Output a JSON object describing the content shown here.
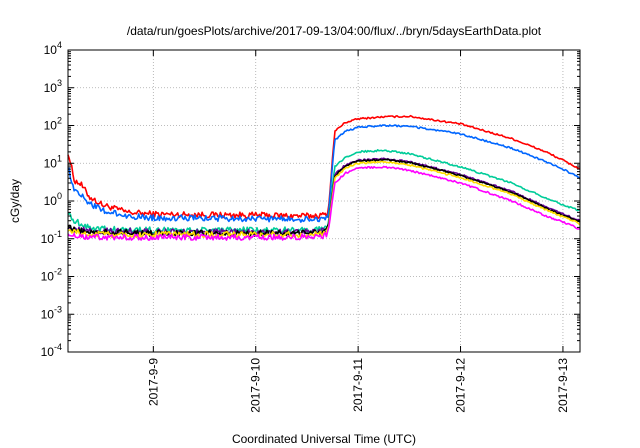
{
  "chart_data": {
    "type": "line",
    "title": "/data/run/goesPlots/archive/2017-09-13/04:00/flux/../bryn/5daysEarthData.plot",
    "xlabel": "Coordinated Universal Time (UTC)",
    "ylabel": "cGy/day",
    "yscale": "log",
    "ylim": [
      0.0001,
      10000
    ],
    "y_ticks": [
      {
        "value": 0.0001,
        "base": "10",
        "exp": "-4"
      },
      {
        "value": 0.001,
        "base": "10",
        "exp": "-3"
      },
      {
        "value": 0.01,
        "base": "10",
        "exp": "-2"
      },
      {
        "value": 0.1,
        "base": "10",
        "exp": "-1"
      },
      {
        "value": 1,
        "base": "10",
        "exp": "0"
      },
      {
        "value": 10,
        "base": "10",
        "exp": "1"
      },
      {
        "value": 100,
        "base": "10",
        "exp": "2"
      },
      {
        "value": 1000,
        "base": "10",
        "exp": "3"
      },
      {
        "value": 10000,
        "base": "10",
        "exp": "4"
      }
    ],
    "xlim": [
      "2017-09-08 04:00",
      "2017-09-13 04:00"
    ],
    "x_ticks": [
      "2017-9-9",
      "2017-9-10",
      "2017-9-11",
      "2017-9-12",
      "2017-9-13"
    ],
    "grid": true,
    "legend": "none",
    "x": [
      "2017-09-08 04:00",
      "2017-09-08 05:30",
      "2017-09-08 07:00",
      "2017-09-08 09:00",
      "2017-09-08 12:00",
      "2017-09-08 18:00",
      "2017-09-09 00:00",
      "2017-09-09 12:00",
      "2017-09-10 00:00",
      "2017-09-10 12:00",
      "2017-09-10 16:00",
      "2017-09-10 17:00",
      "2017-09-10 18:30",
      "2017-09-10 21:00",
      "2017-09-11 00:00",
      "2017-09-11 06:00",
      "2017-09-11 12:00",
      "2017-09-12 00:00",
      "2017-09-12 12:00",
      "2017-09-12 20:00",
      "2017-09-13 00:00",
      "2017-09-13 04:00"
    ],
    "series": [
      {
        "color": "#ff0000",
        "values": [
          20,
          3.5,
          2.8,
          1.3,
          0.8,
          0.5,
          0.45,
          0.43,
          0.42,
          0.4,
          0.42,
          0.5,
          70,
          120,
          150,
          170,
          175,
          110,
          45,
          20,
          12,
          7
        ]
      },
      {
        "color": "#0066ff",
        "values": [
          8,
          2,
          1.5,
          0.9,
          0.55,
          0.4,
          0.36,
          0.35,
          0.34,
          0.33,
          0.34,
          0.4,
          40,
          70,
          90,
          100,
          95,
          60,
          25,
          11,
          7,
          4
        ]
      },
      {
        "color": "#00cc99",
        "values": [
          0.5,
          0.3,
          0.25,
          0.2,
          0.18,
          0.17,
          0.17,
          0.17,
          0.17,
          0.17,
          0.18,
          0.25,
          8,
          14,
          20,
          22,
          18,
          8,
          3,
          1.2,
          0.8,
          0.55
        ]
      },
      {
        "color": "#660099",
        "values": [
          0.22,
          0.18,
          0.17,
          0.16,
          0.16,
          0.16,
          0.15,
          0.15,
          0.15,
          0.15,
          0.16,
          0.2,
          5,
          9,
          12,
          13,
          11,
          5,
          1.8,
          0.7,
          0.45,
          0.3
        ]
      },
      {
        "color": "#000000",
        "values": [
          0.2,
          0.17,
          0.16,
          0.15,
          0.15,
          0.15,
          0.14,
          0.14,
          0.14,
          0.14,
          0.15,
          0.19,
          4.5,
          8.5,
          11.5,
          12.5,
          10.5,
          4.8,
          1.7,
          0.65,
          0.42,
          0.28
        ]
      },
      {
        "color": "#ffdd00",
        "values": [
          0.17,
          0.15,
          0.14,
          0.13,
          0.13,
          0.13,
          0.13,
          0.13,
          0.13,
          0.13,
          0.14,
          0.17,
          4,
          7.5,
          10,
          11,
          9,
          4.2,
          1.5,
          0.58,
          0.38,
          0.25
        ]
      },
      {
        "color": "#ff00ff",
        "values": [
          0.14,
          0.12,
          0.11,
          0.11,
          0.11,
          0.11,
          0.11,
          0.11,
          0.11,
          0.11,
          0.12,
          0.15,
          3,
          5.5,
          7.5,
          8,
          6.5,
          3,
          1,
          0.4,
          0.28,
          0.18
        ]
      }
    ]
  }
}
